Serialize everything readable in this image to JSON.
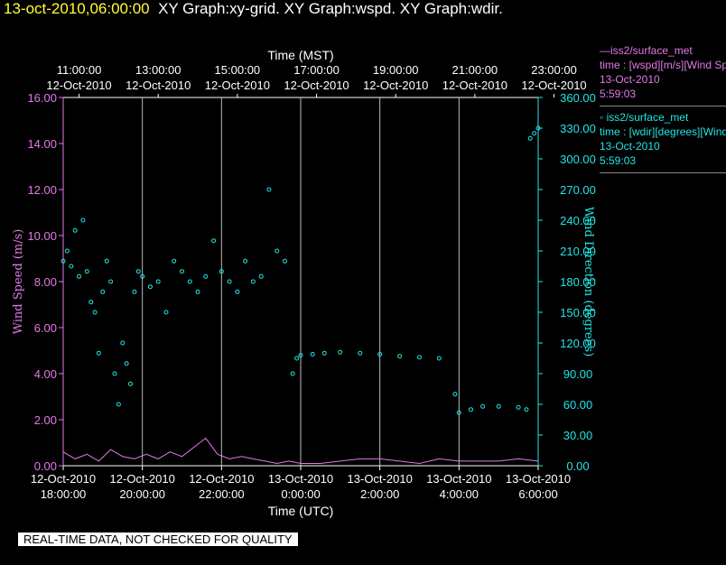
{
  "header": {
    "timestamp": "13-oct-2010,06:00:00",
    "titles": "XY Graph:xy-grid.  XY Graph:wspd.  XY Graph:wdir."
  },
  "legend": {
    "wspd": {
      "name": "—iss2/surface_met",
      "line1": "time : [wspd][m/s][Wind Speed]",
      "date": "13-Oct-2010",
      "time": "5:59:03"
    },
    "wdir": {
      "name": "◦ iss2/surface_met",
      "line1": "time : [wdir][degrees][Wind Direction]",
      "date": "13-Oct-2010",
      "time": "5:59:03"
    }
  },
  "warning": "REAL-TIME DATA, NOT CHECKED FOR QUALITY",
  "colors": {
    "wspd": "#e27ae8",
    "wdir": "#22e5e5",
    "grid": "#ffffff",
    "timestamp": "#ffff33"
  },
  "chart_data": {
    "type": "scatter",
    "top_axis": {
      "label": "Time (MST)",
      "ticks": [
        {
          "time": "11:00:00",
          "date": "12-Oct-2010"
        },
        {
          "time": "13:00:00",
          "date": "12-Oct-2010"
        },
        {
          "time": "15:00:00",
          "date": "12-Oct-2010"
        },
        {
          "time": "17:00:00",
          "date": "12-Oct-2010"
        },
        {
          "time": "19:00:00",
          "date": "12-Oct-2010"
        },
        {
          "time": "21:00:00",
          "date": "12-Oct-2010"
        },
        {
          "time": "23:00:00",
          "date": "12-Oct-2010"
        }
      ]
    },
    "bottom_axis": {
      "label": "Time (UTC)",
      "ticks": [
        {
          "date": "12-Oct-2010",
          "time": "18:00:00"
        },
        {
          "date": "12-Oct-2010",
          "time": "20:00:00"
        },
        {
          "date": "12-Oct-2010",
          "time": "22:00:00"
        },
        {
          "date": "13-Oct-2010",
          "time": "0:00:00"
        },
        {
          "date": "13-Oct-2010",
          "time": "2:00:00"
        },
        {
          "date": "13-Oct-2010",
          "time": "4:00:00"
        },
        {
          "date": "13-Oct-2010",
          "time": "6:00:00"
        }
      ],
      "range_utc_hours": [
        18,
        30
      ]
    },
    "left_axis": {
      "label": "Wind Speed (m/s)",
      "range": [
        0,
        16
      ],
      "ticks": [
        "0.00",
        "2.00",
        "4.00",
        "6.00",
        "8.00",
        "10.00",
        "12.00",
        "14.00",
        "16.00"
      ]
    },
    "right_axis": {
      "label": "Wind Direction (degrees)",
      "range": [
        0,
        360
      ],
      "ticks": [
        "0.00",
        "30.00",
        "60.00",
        "90.00",
        "120.00",
        "150.00",
        "180.00",
        "210.00",
        "240.00",
        "270.00",
        "300.00",
        "330.00",
        "360.00"
      ]
    },
    "grid": "vertical",
    "series": [
      {
        "name": "iss2/surface_met wspd",
        "type": "line",
        "axis": "left",
        "x": [
          18.0,
          18.3,
          18.6,
          18.9,
          19.2,
          19.5,
          19.8,
          20.1,
          20.4,
          20.7,
          21.0,
          21.3,
          21.6,
          21.9,
          22.2,
          22.5,
          22.8,
          23.1,
          23.4,
          23.7,
          24.0,
          24.5,
          25.0,
          25.5,
          26.0,
          26.5,
          27.0,
          27.5,
          28.0,
          28.5,
          29.0,
          29.5,
          30.0
        ],
        "y": [
          0.6,
          0.3,
          0.5,
          0.2,
          0.7,
          0.4,
          0.3,
          0.5,
          0.3,
          0.6,
          0.4,
          0.8,
          1.2,
          0.5,
          0.3,
          0.4,
          0.3,
          0.2,
          0.1,
          0.2,
          0.1,
          0.1,
          0.2,
          0.3,
          0.3,
          0.2,
          0.1,
          0.3,
          0.2,
          0.2,
          0.2,
          0.3,
          0.2
        ]
      },
      {
        "name": "iss2/surface_met wdir",
        "type": "scatter",
        "axis": "right",
        "x": [
          18.0,
          18.1,
          18.2,
          18.3,
          18.4,
          18.5,
          18.6,
          18.7,
          18.8,
          18.9,
          19.0,
          19.1,
          19.2,
          19.3,
          19.4,
          19.5,
          19.6,
          19.7,
          19.8,
          19.9,
          20.0,
          20.2,
          20.4,
          20.6,
          20.8,
          21.0,
          21.2,
          21.4,
          21.6,
          21.8,
          22.0,
          22.2,
          22.4,
          22.6,
          22.8,
          23.0,
          23.2,
          23.4,
          23.6,
          23.8,
          23.9,
          24.0,
          24.3,
          24.6,
          25.0,
          25.5,
          26.0,
          26.5,
          27.0,
          27.5,
          27.9,
          28.0,
          28.3,
          28.6,
          29.0,
          29.5,
          29.7,
          29.8,
          29.9,
          30.0
        ],
        "y": [
          200,
          210,
          195,
          230,
          185,
          240,
          190,
          160,
          150,
          110,
          170,
          200,
          180,
          90,
          60,
          120,
          100,
          80,
          170,
          190,
          185,
          175,
          180,
          150,
          200,
          190,
          180,
          170,
          185,
          220,
          190,
          180,
          170,
          200,
          180,
          185,
          270,
          210,
          200,
          90,
          105,
          108,
          109,
          110,
          111,
          110,
          109,
          107,
          106,
          105,
          70,
          52,
          55,
          58,
          58,
          57,
          55,
          320,
          325,
          330
        ]
      }
    ]
  }
}
